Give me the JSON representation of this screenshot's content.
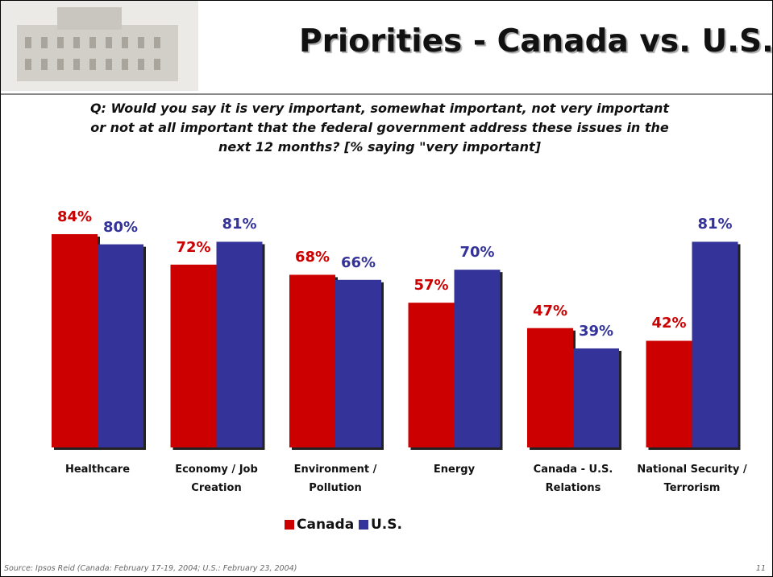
{
  "header": {
    "title": "Priorities - Canada vs. U.S."
  },
  "question": "Q: Would you say it is very important, somewhat important, not very important or not at all important that the federal government address these issues in the next 12 months?  [% saying \"very important]",
  "chart_data": {
    "type": "bar",
    "categories": [
      "Healthcare",
      "Economy / Job Creation",
      "Environment / Pollution",
      "Energy",
      "Canada - U.S. Relations",
      "National Security / Terrorism"
    ],
    "series": [
      {
        "name": "Canada",
        "color": "#cc0000",
        "values": [
          84,
          72,
          68,
          57,
          47,
          42
        ],
        "value_labels": [
          "84%",
          "72%",
          "68%",
          "57%",
          "47%",
          "42%"
        ]
      },
      {
        "name": "U.S.",
        "color": "#333399",
        "values": [
          80,
          81,
          66,
          70,
          39,
          81
        ],
        "value_labels": [
          "80%",
          "81%",
          "66%",
          "70%",
          "39%",
          "81%"
        ]
      }
    ]
  },
  "footer": {
    "source": "Source: Ipsos Reid (Canada: February 17-19, 2004; U.S.: February 23, 2004)",
    "page": "11"
  }
}
